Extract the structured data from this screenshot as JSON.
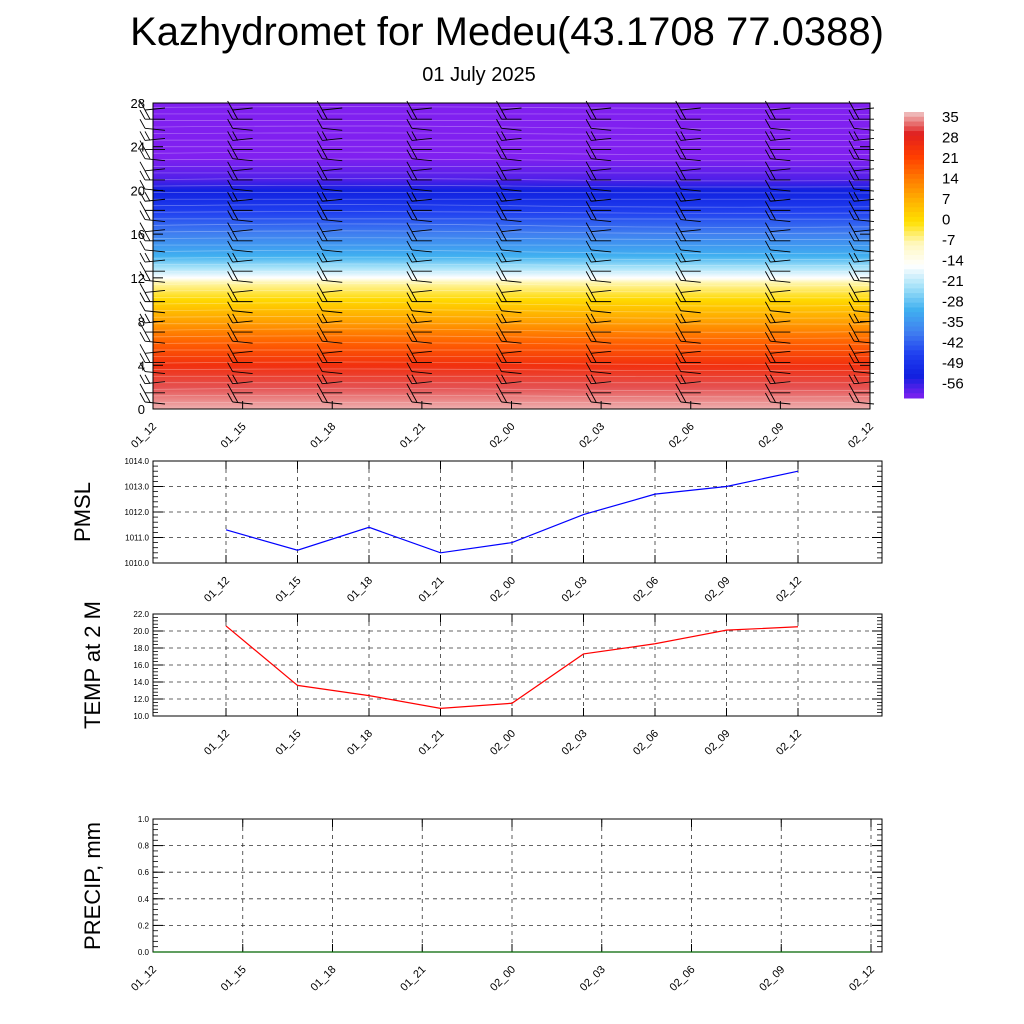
{
  "title": "Kazhydromet for Medeu(43.1708 77.0388)",
  "subtitle": "01 July 2025",
  "time_labels": [
    "01_12",
    "01_15",
    "01_18",
    "01_21",
    "02_00",
    "02_03",
    "02_06",
    "02_09",
    "02_12"
  ],
  "colors": {
    "pmsl_line": "#0000ff",
    "temp_line": "#ff0000",
    "precip_line": "#006400",
    "grid": "#333333"
  },
  "chart_data": [
    {
      "id": "cross_section",
      "type": "heatmap",
      "x_categories": [
        "01_12",
        "01_15",
        "01_18",
        "01_21",
        "02_00",
        "02_03",
        "02_06",
        "02_09",
        "02_12"
      ],
      "y_ticks": [
        0,
        4,
        8,
        12,
        16,
        20,
        24,
        28
      ],
      "ylim": [
        0,
        28
      ],
      "colorbar_labels": [
        "35",
        "28",
        "21",
        "14",
        "7",
        "0",
        "-7",
        "-14",
        "-21",
        "-28",
        "-35",
        "-42",
        "-49",
        "-56"
      ],
      "colorbar_stops": [
        "#f0c8c8",
        "#e02020",
        "#ff3c00",
        "#ff7800",
        "#ffb000",
        "#ffe000",
        "#fff8c0",
        "#ffffff",
        "#a0e0f8",
        "#40b0f0",
        "#4080f0",
        "#2040f0",
        "#1020e0",
        "#8020f0"
      ],
      "temperature_profile": [
        {
          "height": 0,
          "value": 34
        },
        {
          "height": 2,
          "value": 30
        },
        {
          "height": 4,
          "value": 24
        },
        {
          "height": 6,
          "value": 17
        },
        {
          "height": 8,
          "value": 9
        },
        {
          "height": 10,
          "value": 1
        },
        {
          "height": 11.5,
          "value": -6
        },
        {
          "height": 12,
          "value": -14
        },
        {
          "height": 13,
          "value": -21
        },
        {
          "height": 14,
          "value": -28
        },
        {
          "height": 16,
          "value": -35
        },
        {
          "height": 18,
          "value": -42
        },
        {
          "height": 20,
          "value": -49
        },
        {
          "height": 21,
          "value": -53
        },
        {
          "height": 23,
          "value": -56
        },
        {
          "height": 28,
          "value": -60
        }
      ],
      "wind_barbs": "present at every time step"
    },
    {
      "id": "pmsl",
      "type": "line",
      "ylabel": "PMSL",
      "x": [
        "01_12",
        "01_15",
        "01_18",
        "01_21",
        "02_00",
        "02_03",
        "02_06",
        "02_09",
        "02_12"
      ],
      "y_ticks": [
        "1010.0",
        "1011.0",
        "1012.0",
        "1013.0",
        "1014.0"
      ],
      "ylim": [
        1010,
        1014
      ],
      "series": [
        {
          "values": [
            1011.3,
            1010.5,
            1011.4,
            1010.4,
            1010.8,
            1011.9,
            1012.7,
            1013.0,
            1013.6
          ]
        }
      ],
      "grid": true
    },
    {
      "id": "temp",
      "type": "line",
      "ylabel": "TEMP at 2 M",
      "x": [
        "01_12",
        "01_15",
        "01_18",
        "01_21",
        "02_00",
        "02_03",
        "02_06",
        "02_09",
        "02_12"
      ],
      "y_ticks": [
        "10.0",
        "12.0",
        "14.0",
        "16.0",
        "18.0",
        "20.0",
        "22.0"
      ],
      "ylim": [
        10,
        22
      ],
      "series": [
        {
          "values": [
            20.6,
            13.6,
            12.4,
            10.9,
            11.5,
            17.3,
            18.5,
            20.1,
            20.5
          ]
        }
      ],
      "grid": true
    },
    {
      "id": "precip",
      "type": "line",
      "ylabel": "PRECIP, mm",
      "x": [
        "01_12",
        "01_15",
        "01_18",
        "01_21",
        "02_00",
        "02_03",
        "02_06",
        "02_09",
        "02_12"
      ],
      "y_ticks": [
        "0.0",
        "0.2",
        "0.4",
        "0.6",
        "0.8",
        "1.0"
      ],
      "ylim": [
        0,
        1
      ],
      "series": [
        {
          "values": [
            0,
            0,
            0,
            0,
            0,
            0,
            0,
            0,
            0
          ]
        }
      ],
      "grid": true
    }
  ]
}
